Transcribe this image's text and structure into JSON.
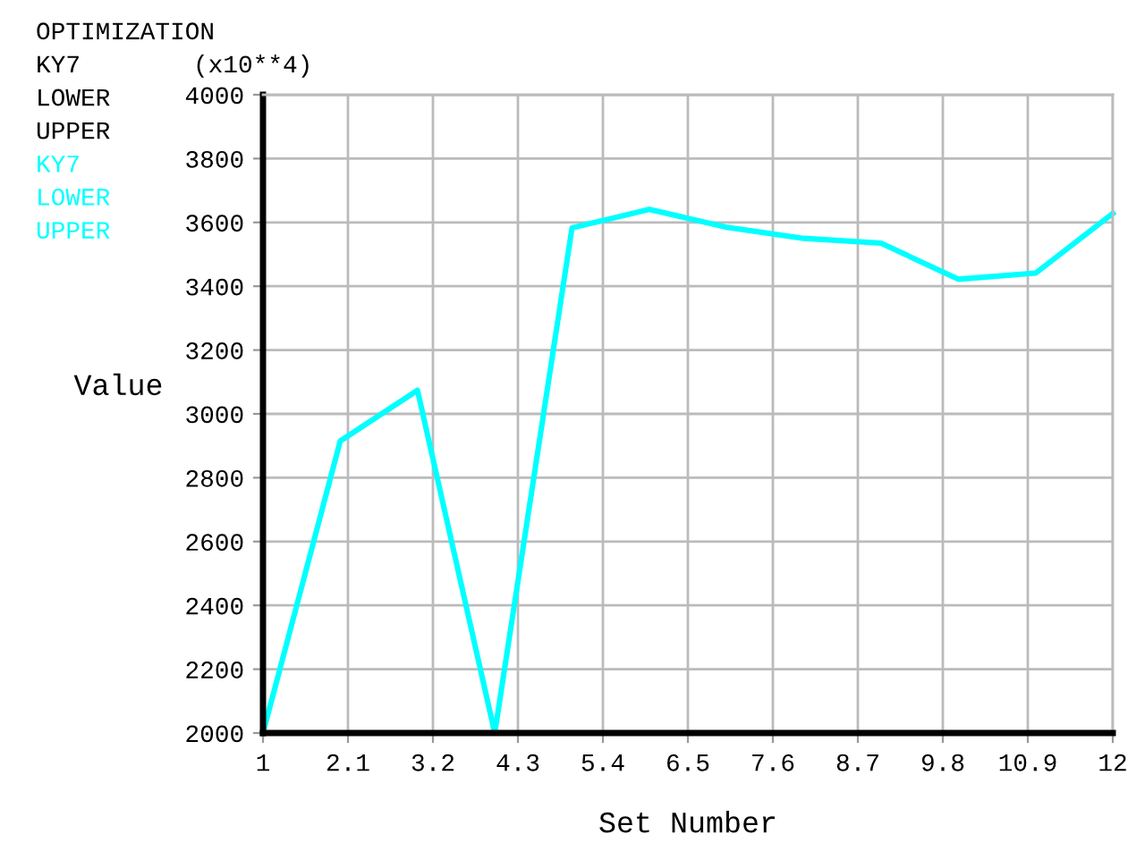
{
  "chart_data": {
    "type": "line",
    "title": "OPTIMIZATION",
    "xlabel": "Set Number",
    "ylabel": "Value",
    "annotations": [
      "KY7",
      "LOWER",
      "UPPER",
      "(x10**4)"
    ],
    "x": [
      1,
      2,
      3,
      4,
      5,
      6,
      7,
      8,
      9,
      10,
      11,
      12
    ],
    "series": [
      {
        "name": "KY7",
        "color": "#00ffff",
        "values": [
          2000,
          2915,
          3074,
          2000,
          3583,
          3641,
          3585,
          3550,
          3535,
          3422,
          3441,
          3628
        ]
      },
      {
        "name": "LOWER",
        "color": "#00ffff",
        "values": [
          null,
          null,
          null,
          null,
          null,
          null,
          null,
          null,
          null,
          null,
          null,
          null
        ]
      },
      {
        "name": "UPPER",
        "color": "#00ffff",
        "values": [
          null,
          null,
          null,
          null,
          null,
          null,
          null,
          null,
          null,
          null,
          null,
          null
        ]
      }
    ],
    "xlim": [
      1,
      12
    ],
    "xticks": [
      1,
      2.1,
      3.2,
      4.3,
      5.4,
      6.5,
      7.6,
      8.7,
      9.8,
      10.9,
      12
    ],
    "ylim": [
      2000,
      4000
    ],
    "yticks": [
      2000,
      2200,
      2400,
      2600,
      2800,
      3000,
      3200,
      3400,
      3600,
      3800,
      4000
    ],
    "grid": true,
    "legend": "top left",
    "line_style": "solid",
    "marker": "none"
  }
}
